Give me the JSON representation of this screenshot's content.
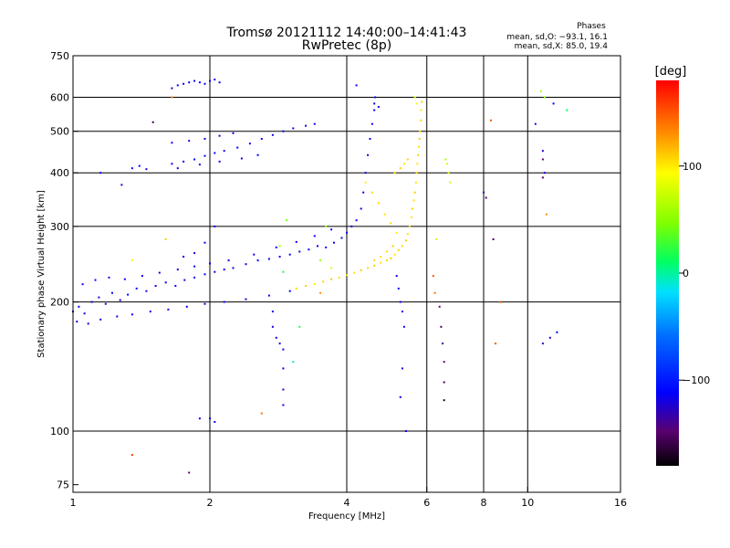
{
  "title_line1": "Tromsø 20121112 14:40:00–14:41:43",
  "title_line2": "RwPretec (8p)",
  "phases_heading": "Phases",
  "phases_o": "mean, sd,O: −93.1, 16.1",
  "phases_x": "mean, sd,X: 85.0, 19.4",
  "colorbar_unit": "[deg]",
  "colorbar_ticks": [
    {
      "value": 100,
      "label": "100"
    },
    {
      "value": 0,
      "label": "0"
    },
    {
      "value": -100,
      "label": "−100"
    }
  ],
  "colorbar_range": [
    -180,
    180
  ],
  "chart_data": {
    "type": "scatter",
    "xlabel": "Frequency [MHz]",
    "ylabel": "Stationary phase Virtual Height [km]",
    "x_scale": "log",
    "y_scale": "log",
    "xlim": [
      1,
      16
    ],
    "ylim": [
      72,
      750
    ],
    "x_ticks": [
      {
        "value": 1,
        "label": "1"
      },
      {
        "value": 2,
        "label": "2"
      },
      {
        "value": 4,
        "label": "4"
      },
      {
        "value": 6,
        "label": "6"
      },
      {
        "value": 8,
        "label": "8"
      },
      {
        "value": 10,
        "label": "10"
      },
      {
        "value": 16,
        "label": "16"
      }
    ],
    "y_ticks": [
      {
        "value": 75,
        "label": "75"
      },
      {
        "value": 100,
        "label": "100"
      },
      {
        "value": 200,
        "label": "200"
      },
      {
        "value": 300,
        "label": "300"
      },
      {
        "value": 400,
        "label": "400"
      },
      {
        "value": 500,
        "label": "500"
      },
      {
        "value": 600,
        "label": "600"
      },
      {
        "value": 750,
        "label": "750"
      }
    ],
    "grid_x": [
      2,
      4,
      6,
      8,
      10
    ],
    "grid_y": [
      100,
      200,
      300,
      400,
      500,
      600
    ],
    "grid": true,
    "series": [
      {
        "points": [
          [
            1.0,
            190,
            -115
          ],
          [
            1.03,
            195,
            -112
          ],
          [
            1.06,
            188,
            -118
          ],
          [
            1.1,
            200,
            -110
          ],
          [
            1.14,
            205,
            -115
          ],
          [
            1.18,
            198,
            -120
          ],
          [
            1.22,
            210,
            -112
          ],
          [
            1.27,
            202,
            -116
          ],
          [
            1.32,
            208,
            -114
          ],
          [
            1.38,
            215,
            -110
          ],
          [
            1.45,
            212,
            -118
          ],
          [
            1.52,
            218,
            -115
          ],
          [
            1.6,
            222,
            -112
          ],
          [
            1.68,
            218,
            -117
          ],
          [
            1.76,
            225,
            -114
          ],
          [
            1.85,
            228,
            -110
          ],
          [
            1.95,
            232,
            -116
          ],
          [
            2.05,
            235,
            -112
          ],
          [
            2.15,
            238,
            -115
          ],
          [
            2.25,
            240,
            -118
          ],
          [
            2.4,
            245,
            -113
          ],
          [
            2.55,
            250,
            -110
          ],
          [
            2.7,
            252,
            -116
          ],
          [
            2.85,
            255,
            -112
          ],
          [
            3.0,
            258,
            -114
          ],
          [
            3.15,
            262,
            -118
          ],
          [
            3.3,
            265,
            -110
          ],
          [
            3.45,
            270,
            -115
          ],
          [
            3.6,
            268,
            -112
          ],
          [
            3.75,
            275,
            -117
          ],
          [
            3.9,
            282,
            -113
          ],
          [
            4.0,
            290,
            -110
          ],
          [
            4.1,
            300,
            -115
          ],
          [
            4.2,
            310,
            -112
          ],
          [
            4.3,
            330,
            -116
          ],
          [
            4.35,
            360,
            -114
          ],
          [
            4.4,
            400,
            -110
          ],
          [
            4.45,
            440,
            -118
          ],
          [
            4.5,
            480,
            -113
          ],
          [
            4.55,
            520,
            -115
          ],
          [
            4.6,
            560,
            -112
          ],
          [
            4.62,
            600,
            -117
          ],
          [
            1.02,
            180,
            -114
          ],
          [
            1.08,
            178,
            -118
          ],
          [
            1.15,
            182,
            -112
          ],
          [
            1.25,
            185,
            -116
          ],
          [
            1.35,
            187,
            -113
          ],
          [
            1.48,
            190,
            -115
          ],
          [
            1.62,
            192,
            -118
          ],
          [
            1.78,
            195,
            -110
          ],
          [
            1.95,
            198,
            -116
          ],
          [
            2.15,
            200,
            -112
          ],
          [
            2.4,
            203,
            -115
          ],
          [
            2.7,
            207,
            -113
          ],
          [
            3.0,
            212,
            -117
          ],
          [
            1.05,
            220,
            -116
          ],
          [
            1.12,
            225,
            -112
          ],
          [
            1.2,
            228,
            -117
          ],
          [
            1.3,
            226,
            -113
          ],
          [
            1.42,
            230,
            -115
          ],
          [
            1.55,
            234,
            -110
          ],
          [
            1.7,
            238,
            -116
          ],
          [
            1.85,
            242,
            -112
          ],
          [
            2.0,
            246,
            -114
          ],
          [
            2.2,
            250,
            -118
          ],
          [
            2.5,
            258,
            -113
          ],
          [
            2.8,
            268,
            -110
          ],
          [
            3.1,
            276,
            -116
          ],
          [
            3.4,
            285,
            -112
          ],
          [
            3.7,
            295,
            -114
          ],
          [
            1.35,
            410,
            -115
          ],
          [
            1.4,
            415,
            -112
          ],
          [
            1.45,
            408,
            -118
          ],
          [
            1.65,
            420,
            -113
          ],
          [
            1.75,
            425,
            -116
          ],
          [
            1.85,
            430,
            -110
          ],
          [
            1.95,
            438,
            -114
          ],
          [
            2.05,
            445,
            -112
          ],
          [
            2.15,
            450,
            -117
          ],
          [
            2.3,
            458,
            -113
          ],
          [
            2.45,
            468,
            -115
          ],
          [
            2.6,
            480,
            -112
          ],
          [
            2.75,
            490,
            -116
          ],
          [
            2.9,
            500,
            -114
          ],
          [
            3.05,
            508,
            -110
          ],
          [
            3.25,
            515,
            -118
          ],
          [
            3.4,
            520,
            -113
          ],
          [
            1.65,
            470,
            -112
          ],
          [
            1.8,
            475,
            -116
          ],
          [
            1.95,
            480,
            -114
          ],
          [
            2.1,
            488,
            -118
          ],
          [
            2.25,
            495,
            -113
          ],
          [
            1.7,
            410,
            -115
          ],
          [
            1.9,
            418,
            -112
          ],
          [
            2.1,
            425,
            -116
          ],
          [
            2.35,
            432,
            -114
          ],
          [
            2.55,
            440,
            -110
          ],
          [
            1.65,
            630,
            -115
          ],
          [
            1.7,
            640,
            -112
          ],
          [
            1.75,
            645,
            -118
          ],
          [
            1.8,
            650,
            -113
          ],
          [
            1.85,
            655,
            -116
          ],
          [
            1.9,
            650,
            -110
          ],
          [
            1.95,
            645,
            -114
          ],
          [
            2.0,
            655,
            -112
          ],
          [
            2.05,
            660,
            -117
          ],
          [
            2.1,
            650,
            -113
          ],
          [
            2.05,
            300,
            -115
          ],
          [
            1.95,
            275,
            -112
          ],
          [
            1.85,
            260,
            -116
          ],
          [
            1.75,
            255,
            -114
          ],
          [
            2.75,
            190,
            -112
          ],
          [
            2.75,
            175,
            -118
          ],
          [
            2.8,
            165,
            -113
          ],
          [
            2.85,
            160,
            -116
          ],
          [
            2.9,
            155,
            -110
          ],
          [
            2.9,
            140,
            -114
          ],
          [
            2.9,
            125,
            -118
          ],
          [
            2.9,
            115,
            -113
          ],
          [
            1.9,
            107,
            -115
          ],
          [
            2.0,
            107,
            -112
          ],
          [
            2.05,
            105,
            -116
          ],
          [
            1.8,
            80,
            -150
          ],
          [
            1.28,
            375,
            -118
          ],
          [
            1.15,
            400,
            -110
          ],
          [
            4.2,
            640,
            -112
          ],
          [
            4.6,
            580,
            -115
          ],
          [
            4.7,
            570,
            -117
          ],
          [
            5.15,
            230,
            -115
          ],
          [
            5.2,
            215,
            -112
          ],
          [
            5.25,
            200,
            -116
          ],
          [
            5.3,
            190,
            -118
          ],
          [
            5.35,
            175,
            -113
          ],
          [
            5.3,
            140,
            -115
          ],
          [
            5.25,
            120,
            -112
          ],
          [
            5.4,
            100,
            -116
          ],
          [
            6.4,
            195,
            -150
          ],
          [
            6.45,
            175,
            -160
          ],
          [
            6.5,
            160,
            -140
          ],
          [
            6.55,
            145,
            -150
          ],
          [
            6.55,
            130,
            -160
          ],
          [
            6.55,
            118,
            -170
          ],
          [
            8.0,
            360,
            -130
          ],
          [
            8.1,
            350,
            -150
          ],
          [
            8.4,
            280,
            -155
          ],
          [
            10.8,
            450,
            -120
          ],
          [
            10.8,
            430,
            -150
          ],
          [
            10.9,
            400,
            -115
          ],
          [
            10.8,
            390,
            -150
          ],
          [
            10.4,
            520,
            -120
          ],
          [
            11.4,
            580,
            -115
          ],
          [
            10.8,
            160,
            -130
          ],
          [
            11.2,
            165,
            -120
          ],
          [
            11.6,
            170,
            -110
          ],
          [
            1.5,
            525,
            -160
          ]
        ]
      },
      {
        "points": [
          [
            3.1,
            215,
            105
          ],
          [
            3.25,
            218,
            110
          ],
          [
            3.4,
            220,
            102
          ],
          [
            3.55,
            223,
            108
          ],
          [
            3.7,
            226,
            112
          ],
          [
            3.85,
            228,
            104
          ],
          [
            4.0,
            231,
            109
          ],
          [
            4.15,
            234,
            103
          ],
          [
            4.3,
            237,
            111
          ],
          [
            4.45,
            240,
            106
          ],
          [
            4.6,
            243,
            110
          ],
          [
            4.75,
            247,
            104
          ],
          [
            4.9,
            250,
            108
          ],
          [
            5.0,
            253,
            112
          ],
          [
            5.1,
            258,
            103
          ],
          [
            5.2,
            264,
            109
          ],
          [
            5.3,
            270,
            105
          ],
          [
            5.4,
            278,
            111
          ],
          [
            5.45,
            288,
            104
          ],
          [
            5.5,
            300,
            108
          ],
          [
            5.55,
            315,
            102
          ],
          [
            5.58,
            330,
            110
          ],
          [
            5.62,
            345,
            106
          ],
          [
            5.65,
            360,
            112
          ],
          [
            5.68,
            380,
            104
          ],
          [
            5.7,
            400,
            108
          ],
          [
            5.72,
            420,
            103
          ],
          [
            5.74,
            440,
            110
          ],
          [
            5.76,
            460,
            106
          ],
          [
            5.78,
            480,
            111
          ],
          [
            5.8,
            500,
            104
          ],
          [
            5.82,
            530,
            108
          ],
          [
            5.83,
            560,
            102
          ],
          [
            5.85,
            585,
            109
          ],
          [
            4.4,
            380,
            100
          ],
          [
            4.55,
            360,
            106
          ],
          [
            4.7,
            340,
            110
          ],
          [
            4.85,
            320,
            104
          ],
          [
            5.0,
            305,
            108
          ],
          [
            5.15,
            290,
            102
          ],
          [
            5.05,
            270,
            110
          ],
          [
            4.9,
            262,
            106
          ],
          [
            4.75,
            255,
            104
          ],
          [
            4.6,
            250,
            108
          ],
          [
            5.1,
            400,
            104
          ],
          [
            5.25,
            410,
            110
          ],
          [
            5.35,
            420,
            102
          ],
          [
            5.45,
            430,
            108
          ],
          [
            5.65,
            600,
            80
          ],
          [
            5.7,
            580,
            90
          ],
          [
            6.2,
            230,
            150
          ],
          [
            6.25,
            210,
            140
          ],
          [
            6.3,
            280,
            70
          ],
          [
            6.6,
            430,
            60
          ],
          [
            6.65,
            420,
            80
          ],
          [
            6.7,
            400,
            70
          ],
          [
            6.75,
            380,
            75
          ],
          [
            3.6,
            300,
            50
          ],
          [
            2.95,
            310,
            40
          ],
          [
            2.85,
            270,
            60
          ],
          [
            2.9,
            235,
            15
          ],
          [
            3.5,
            250,
            55
          ],
          [
            3.7,
            240,
            80
          ],
          [
            1.65,
            600,
            130
          ],
          [
            1.6,
            280,
            110
          ],
          [
            1.35,
            250,
            95
          ],
          [
            2.6,
            110,
            140
          ],
          [
            3.05,
            145,
            -10
          ],
          [
            3.15,
            175,
            20
          ],
          [
            8.5,
            160,
            150
          ],
          [
            8.3,
            530,
            150
          ],
          [
            8.7,
            200,
            150
          ],
          [
            10.9,
            600,
            50
          ],
          [
            10.7,
            620,
            60
          ],
          [
            11.0,
            320,
            130
          ],
          [
            12.2,
            560,
            10
          ],
          [
            1.35,
            88,
            160
          ],
          [
            3.5,
            210,
            130
          ]
        ]
      }
    ]
  }
}
